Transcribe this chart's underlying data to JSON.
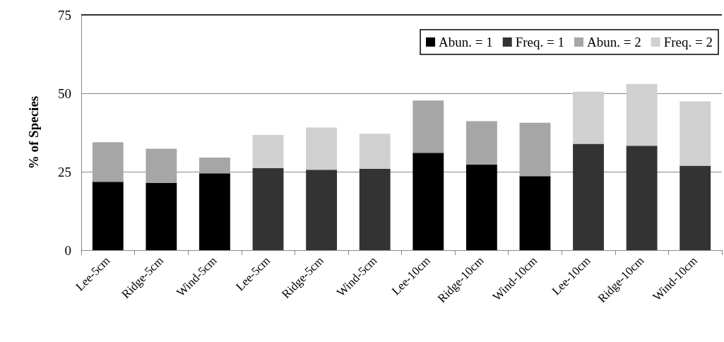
{
  "chart_data": {
    "type": "bar",
    "stacked": true,
    "ylabel": "% of Species",
    "categories": [
      "Lee-5cm",
      "Ridge-5cm",
      "Wind-5cm",
      "Lee-5cm",
      "Ridge-5cm",
      "Wind-5cm",
      "Lee-10cm",
      "Ridge-10cm",
      "Wind-10cm",
      "Lee-10cm",
      "Ridge-10cm",
      "Wind-10cm"
    ],
    "series": [
      {
        "name": "Abun. = 1",
        "color": "#000000",
        "values": [
          21.8,
          21.4,
          24.5,
          null,
          null,
          null,
          31.0,
          27.3,
          23.6,
          null,
          null,
          null
        ]
      },
      {
        "name": "Freq. = 1",
        "color": "#333333",
        "values": [
          null,
          null,
          null,
          26.2,
          25.6,
          25.9,
          null,
          null,
          null,
          33.9,
          33.3,
          26.9
        ]
      },
      {
        "name": "Abun. = 2",
        "color": "#a6a6a6",
        "values": [
          12.6,
          10.9,
          5.0,
          null,
          null,
          null,
          16.7,
          13.8,
          17.0,
          null,
          null,
          null
        ]
      },
      {
        "name": "Freq. = 2",
        "color": "#d0d0d0",
        "values": [
          null,
          null,
          null,
          10.5,
          13.5,
          11.2,
          null,
          null,
          null,
          16.6,
          19.7,
          20.5
        ]
      }
    ],
    "ylim": [
      0,
      75
    ],
    "yticks": [
      0,
      25,
      50,
      75
    ],
    "grid": "y",
    "legend": "top right"
  }
}
